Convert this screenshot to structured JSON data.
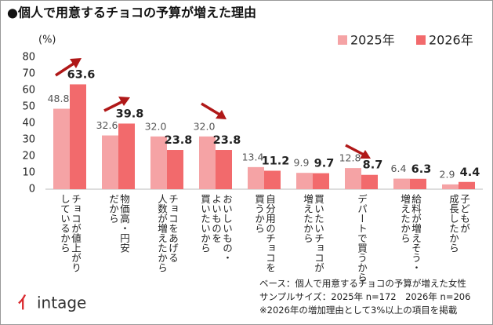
{
  "chart_data": {
    "type": "bar",
    "title": "●個人で用意するチョコの予算が増えた理由",
    "y_label": "(%)",
    "categories": [
      "チョコが値上がり\nしているから",
      "物価高・円安\nだから",
      "チョコをあげる\n人数が増えたから",
      "おいしいもの・\nよいものを\n買いたいから",
      "自分用のチョコを\n買うから",
      "買いたいチョコが\n増えたから",
      "デパートで買うから",
      "給料が増えそう・\n増えたから",
      "子どもが\n成長したから"
    ],
    "series": [
      {
        "name": "2025年",
        "color": "#f5a3a5",
        "values": [
          48.8,
          32.6,
          32.0,
          32.0,
          13.4,
          9.9,
          12.8,
          6.4,
          2.9
        ],
        "value_labels": [
          "48.8",
          "32.6",
          "32.0",
          "32.0",
          "13.4",
          "9.9",
          "12.8",
          "6.4",
          "2.9"
        ]
      },
      {
        "name": "2026年",
        "color": "#f26a6c",
        "values": [
          63.6,
          39.8,
          23.8,
          23.8,
          11.2,
          9.7,
          8.7,
          6.3,
          4.4
        ],
        "value_labels": [
          "63.6",
          "39.8",
          "23.8",
          "23.8",
          "11.2",
          "9.7",
          "8.7",
          "6.3",
          "4.4"
        ]
      }
    ],
    "ylim": [
      0,
      80
    ],
    "yticks": [
      0,
      10,
      20,
      30,
      40,
      50,
      60,
      70,
      80
    ],
    "legend": "top-right",
    "notes": [
      "ベース：個人で用意するチョコの予算が増えた女性",
      "サンプルサイズ：2025年 n=172　2026年 n=206",
      "※2026年の増加理由として3%以上の項目を掲載"
    ],
    "logo": "intage"
  }
}
